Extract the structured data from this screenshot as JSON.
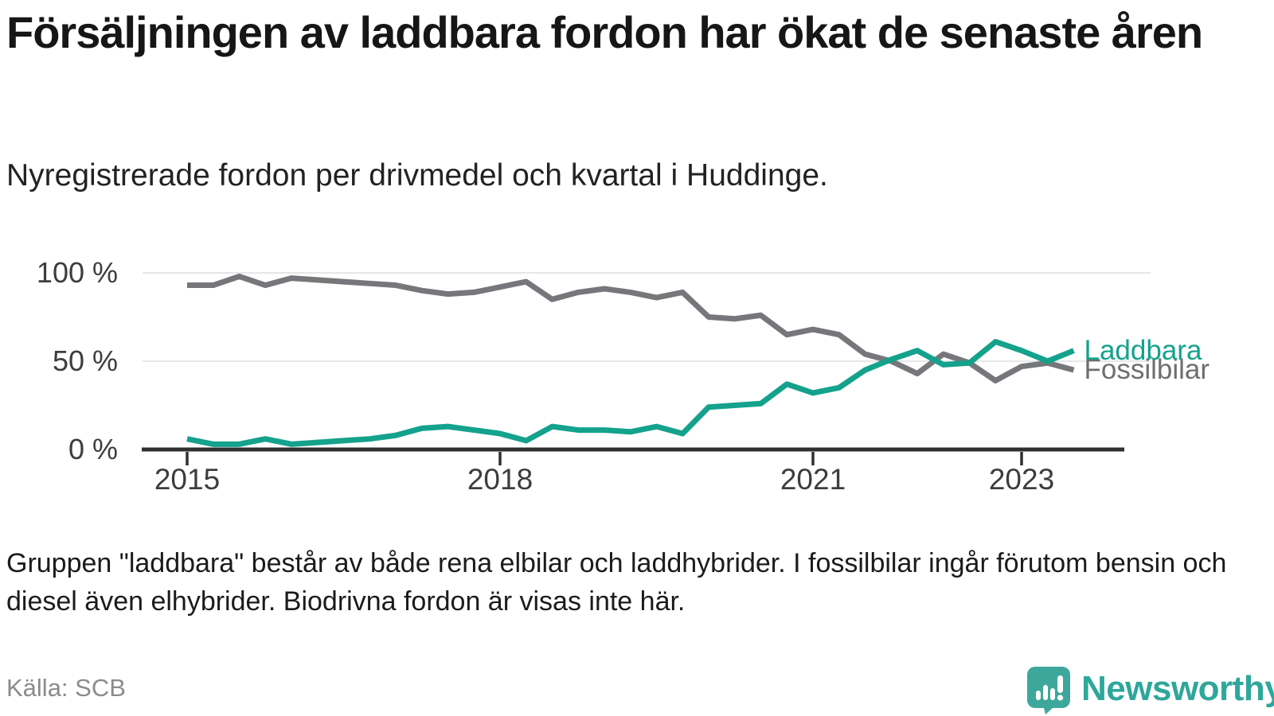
{
  "header": {
    "title": "Försäljningen av laddbara fordon har ökat de senaste åren",
    "subtitle": "Nyregistrerade fordon per drivmedel och kvartal i Huddinge."
  },
  "chart_data": {
    "type": "line",
    "unit": "%",
    "x": [
      "2015 Q1",
      "2015 Q2",
      "2015 Q3",
      "2015 Q4",
      "2016 Q1",
      "2016 Q2",
      "2016 Q3",
      "2016 Q4",
      "2017 Q1",
      "2017 Q2",
      "2017 Q3",
      "2017 Q4",
      "2018 Q1",
      "2018 Q2",
      "2018 Q3",
      "2018 Q4",
      "2019 Q1",
      "2019 Q2",
      "2019 Q3",
      "2019 Q4",
      "2020 Q1",
      "2020 Q2",
      "2020 Q3",
      "2020 Q4",
      "2021 Q1",
      "2021 Q2",
      "2021 Q3",
      "2021 Q4",
      "2022 Q1",
      "2022 Q2",
      "2022 Q3",
      "2022 Q4",
      "2023 Q1",
      "2023 Q2",
      "2023 Q3"
    ],
    "series": [
      {
        "name": "Fossilbilar",
        "color": "#76777a",
        "label_color": "#6d6e70",
        "values": [
          93,
          93,
          98,
          93,
          97,
          96,
          95,
          94,
          93,
          90,
          88,
          89,
          92,
          95,
          85,
          89,
          91,
          89,
          86,
          89,
          75,
          74,
          76,
          65,
          68,
          65,
          54,
          50,
          43,
          54,
          49,
          39,
          47,
          49,
          45
        ]
      },
      {
        "name": "Laddbara",
        "color": "#14a28c",
        "label_color": "#14a28c",
        "values": [
          6,
          3,
          3,
          6,
          3,
          4,
          5,
          6,
          8,
          12,
          13,
          11,
          9,
          5,
          13,
          11,
          11,
          10,
          13,
          9,
          24,
          25,
          26,
          37,
          32,
          35,
          45,
          51,
          56,
          48,
          49,
          61,
          56,
          50,
          56
        ]
      }
    ],
    "ylim": [
      0,
      100
    ],
    "yticks": [
      {
        "value": 100,
        "label": "100 %"
      },
      {
        "value": 50,
        "label": "50 %"
      },
      {
        "value": 0,
        "label": "0 %"
      }
    ],
    "xticks": [
      {
        "index": 0,
        "label": "2015"
      },
      {
        "index": 12,
        "label": "2018"
      },
      {
        "index": 24,
        "label": "2021"
      },
      {
        "index": 32,
        "label": "2023"
      }
    ],
    "grid": "horizontal",
    "legend_position": "line-end-labels",
    "grid_color": "#e7e7e7",
    "axis_color": "#303030"
  },
  "footnote": "Gruppen \"laddbara\" består av både rena elbilar och laddhybrider. I fossilbilar ingår förutom bensin och diesel även elhybrider. Biodrivna fordon är visas inte här.",
  "source": {
    "label": "Källa: SCB"
  },
  "branding": {
    "name": "Newsworthy",
    "color": "#2ea79b",
    "icon": "newsworthy-chart-bubble-icon"
  }
}
